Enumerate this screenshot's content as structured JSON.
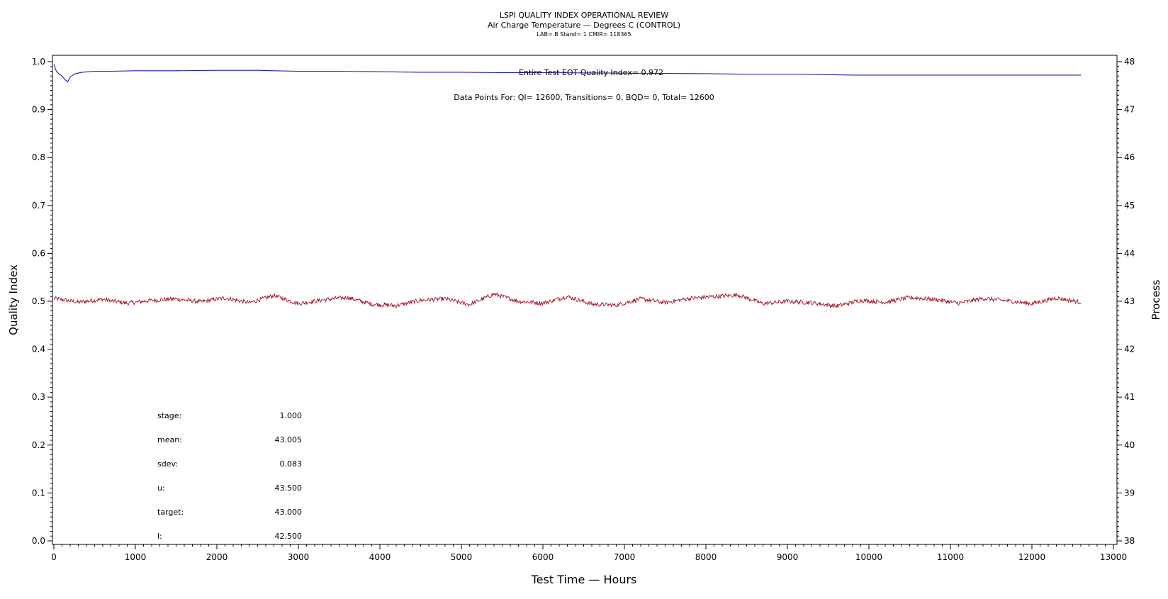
{
  "chart_data": {
    "type": "line",
    "title": "LSPI QUALITY INDEX OPERATIONAL REVIEW",
    "subtitle": "Air Charge Temperature — Degrees C (CONTROL)",
    "subtitle2": "LAB= B Stand= 1 CMIR= 118365",
    "xlabel": "Test Time — Hours",
    "ylabel": "Quality Index",
    "y2label": "Process",
    "xlim": [
      0,
      13000
    ],
    "ylim": [
      0.0,
      1.0
    ],
    "y2lim": [
      38,
      48
    ],
    "x_ticks": [
      "0",
      "1000",
      "2000",
      "3000",
      "4000",
      "5000",
      "6000",
      "7000",
      "8000",
      "9000",
      "10000",
      "11000",
      "12000",
      "13000"
    ],
    "y_ticks": [
      "0.0",
      "0.1",
      "0.2",
      "0.3",
      "0.4",
      "0.5",
      "0.6",
      "0.7",
      "0.8",
      "0.9",
      "1.0"
    ],
    "y2_ticks": [
      "38",
      "39",
      "40",
      "41",
      "42",
      "43",
      "44",
      "45",
      "46",
      "47",
      "48"
    ],
    "grid": false,
    "annotations": {
      "eot_quality_index": "Entire Test EOT Quality Index=   0.972",
      "data_points": "Data Points For: QI= 12600, Transitions=     0, BQD=     0, Total= 12600"
    },
    "stats": [
      {
        "label": "stage:",
        "value": "1.000"
      },
      {
        "label": "mean:",
        "value": "43.005"
      },
      {
        "label": "sdev:",
        "value": "0.083"
      },
      {
        "label": "u:",
        "value": "43.500"
      },
      {
        "label": "target:",
        "value": "43.000"
      },
      {
        "label": "l:",
        "value": "42.500"
      }
    ],
    "series": [
      {
        "axis": "left",
        "color": "#1c1cb0",
        "x": [
          0,
          30,
          60,
          100,
          140,
          170,
          200,
          260,
          350,
          500,
          700,
          1000,
          1500,
          2000,
          2500,
          2700,
          3000,
          3500,
          4000,
          4500,
          5000,
          5500,
          6000,
          7000,
          8000,
          8400,
          9000,
          9500,
          9800,
          10000,
          11000,
          12000,
          12600
        ],
        "values": [
          0.995,
          0.98,
          0.975,
          0.97,
          0.962,
          0.958,
          0.968,
          0.975,
          0.978,
          0.98,
          0.98,
          0.981,
          0.981,
          0.982,
          0.982,
          0.981,
          0.98,
          0.98,
          0.979,
          0.978,
          0.978,
          0.977,
          0.977,
          0.976,
          0.975,
          0.974,
          0.974,
          0.973,
          0.972,
          0.972,
          0.972,
          0.972,
          0.972
        ]
      },
      {
        "axis": "right",
        "color": "#a3122a",
        "x": [
          0,
          300,
          600,
          900,
          1200,
          1500,
          1800,
          2100,
          2400,
          2700,
          3000,
          3300,
          3600,
          3900,
          4200,
          4500,
          4800,
          5100,
          5400,
          5700,
          6000,
          6300,
          6600,
          6900,
          7200,
          7500,
          7800,
          8100,
          8400,
          8700,
          9000,
          9300,
          9600,
          9900,
          10200,
          10500,
          10800,
          11100,
          11400,
          11700,
          12000,
          12300,
          12600
        ],
        "values": [
          43.06,
          42.98,
          43.04,
          42.96,
          43.02,
          43.05,
          42.99,
          43.07,
          42.97,
          43.12,
          42.95,
          43.03,
          43.08,
          42.94,
          42.91,
          43.02,
          43.05,
          42.93,
          43.15,
          43.0,
          42.96,
          43.1,
          42.94,
          42.92,
          43.05,
          42.97,
          43.06,
          43.1,
          43.13,
          42.95,
          43.0,
          42.97,
          42.9,
          43.02,
          42.98,
          43.08,
          43.04,
          42.96,
          43.06,
          43.01,
          42.95,
          43.07,
          42.98
        ]
      }
    ]
  }
}
